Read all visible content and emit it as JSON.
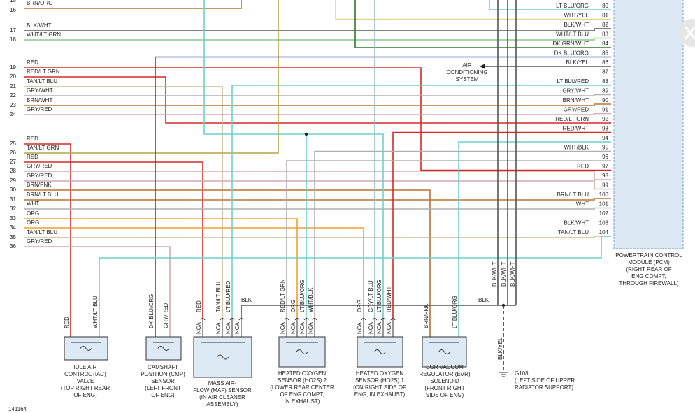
{
  "top_cut_pin": "15",
  "left_pins": [
    {
      "pin": "16",
      "wire": "BRN/ORG"
    },
    {
      "pin": "17",
      "wire": "BLK/WHT"
    },
    {
      "pin": "18",
      "wire": "WHT/LT GRN"
    },
    {
      "pin": "19",
      "wire": "RED"
    },
    {
      "pin": "20",
      "wire": "RED/LT GRN"
    },
    {
      "pin": "21",
      "wire": "TAN/LT BLU"
    },
    {
      "pin": "22",
      "wire": "GRY/WHT"
    },
    {
      "pin": "23",
      "wire": "BRN/WHT"
    },
    {
      "pin": "24",
      "wire": "GRY/RED"
    },
    {
      "pin": "25",
      "wire": "RED"
    },
    {
      "pin": "26",
      "wire": "TAN/LT GRN"
    },
    {
      "pin": "27",
      "wire": "RED"
    },
    {
      "pin": "28",
      "wire": "GRY/RED"
    },
    {
      "pin": "29",
      "wire": "GRY/RED"
    },
    {
      "pin": "30",
      "wire": "BRN/PNK"
    },
    {
      "pin": "31",
      "wire": "BRN/LT BLU"
    },
    {
      "pin": "32",
      "wire": "WHT"
    },
    {
      "pin": "33",
      "wire": "ORG"
    },
    {
      "pin": "34",
      "wire": "ORG"
    },
    {
      "pin": "35",
      "wire": "TAN/LT BLU"
    },
    {
      "pin": "36",
      "wire": "GRY/RED"
    }
  ],
  "right_pins": [
    {
      "pin": "80",
      "wire": "LT BLU/ORG"
    },
    {
      "pin": "81",
      "wire": "WHT/YEL"
    },
    {
      "pin": "82",
      "wire": "BLK/WHT"
    },
    {
      "pin": "83",
      "wire": "WHT/LT BLU"
    },
    {
      "pin": "84",
      "wire": "DK GRN/WHT"
    },
    {
      "pin": "85",
      "wire": "DK BLU/ORG"
    },
    {
      "pin": "86",
      "wire": "BLK/YEL"
    },
    {
      "pin": "87"
    },
    {
      "pin": "88",
      "wire": "LT BLU/RED"
    },
    {
      "pin": "89",
      "wire": "GRY/WHT"
    },
    {
      "pin": "90",
      "wire": "BRN/WHT"
    },
    {
      "pin": "91",
      "wire": "GRY/RED"
    },
    {
      "pin": "92",
      "wire": "RED/LT GRN"
    },
    {
      "pin": "93",
      "wire": "RED/WHT"
    },
    {
      "pin": "94"
    },
    {
      "pin": "95",
      "wire": "WHT/BLK"
    },
    {
      "pin": "96"
    },
    {
      "pin": "97",
      "wire": "RED"
    },
    {
      "pin": "98"
    },
    {
      "pin": "99"
    },
    {
      "pin": "100",
      "wire": "BRN/LT BLU"
    },
    {
      "pin": "101",
      "wire": "WHT"
    },
    {
      "pin": "102"
    },
    {
      "pin": "103",
      "wire": "BLK/WHT"
    },
    {
      "pin": "104",
      "wire": "TAN/LT BLU"
    }
  ],
  "pcm": {
    "lines": [
      "POWERTRAIN CONTROL",
      "MODULE (PCM)",
      "(RIGHT REAR OF",
      "ENG COMPT,",
      "THROUGH FIREWALL)"
    ]
  },
  "ac": {
    "lines": [
      "AIR",
      "CONDITIONING",
      "SYSTEM"
    ]
  },
  "components": [
    {
      "label": [
        "IDLE AIR",
        "CONTROL (IAC)",
        "VALVE",
        "(TOP RIGHT REAR",
        "OF ENG)"
      ],
      "wires": [
        "RED",
        "WHT/LT BLU"
      ]
    },
    {
      "label": [
        "CAMSHAFT",
        "POSITION (CMP)",
        "SENSOR",
        "(LEFT FRONT",
        "OF ENG)"
      ],
      "wires": [
        "DK BLU/ORG",
        "GRY/RED"
      ]
    },
    {
      "label": [
        "MASS AIR-",
        "FLOW (MAF) SENSOR",
        "(IN AIR CLEANER",
        "ASSEMBLY)"
      ],
      "wires": [
        "RED",
        "TAN/LT BLU",
        "LT BLU/RED"
      ],
      "pins": [
        "NCA",
        "NCA",
        "NCA",
        "NCA"
      ]
    },
    {
      "label": [
        "HEATED OXYGEN",
        "SENSOR (HO2S) 2",
        "(LOWER REAR CENTER",
        "OF ENG COMPT,",
        "IN EXHAUST)"
      ],
      "wires": [
        "RED/LT GRN",
        "ORG",
        "LT BLU/ORG",
        "WHT/BLK"
      ],
      "pins": [
        "NCA",
        "NCA",
        "NCA",
        "NCA"
      ]
    },
    {
      "label": [
        "HEATED OXYGEN",
        "SENSOR (HO2S) 1",
        "(ON RIGHT SIDE OF",
        "ENG, IN EXHAUST)"
      ],
      "wires": [
        "ORG",
        "GRY/LT BLU",
        "LT BLU/ORG",
        "RED/WHT"
      ],
      "pins": [
        "NCA",
        "NCA",
        "NCA",
        "NCA"
      ]
    },
    {
      "label": [
        "EGR VACUUM",
        "REGULATOR (EVR)",
        "SOLENOID",
        "(FRONT RIGHT",
        "SIDE OF ENG)"
      ],
      "wires": [
        "BRN/PNK",
        "LT BLU/ORG"
      ]
    }
  ],
  "ground": {
    "wire_labels": [
      "BLK",
      "BLK"
    ],
    "pcm_wires": [
      "BLK/WHT",
      "BLK/WHT",
      "BLK/WHT"
    ],
    "ground_wire": "BLK/YEL",
    "label": [
      "G108",
      "(LEFT SIDE OF UPPER",
      "RADIATOR SUPPORT)"
    ]
  },
  "figure_id": "141164"
}
